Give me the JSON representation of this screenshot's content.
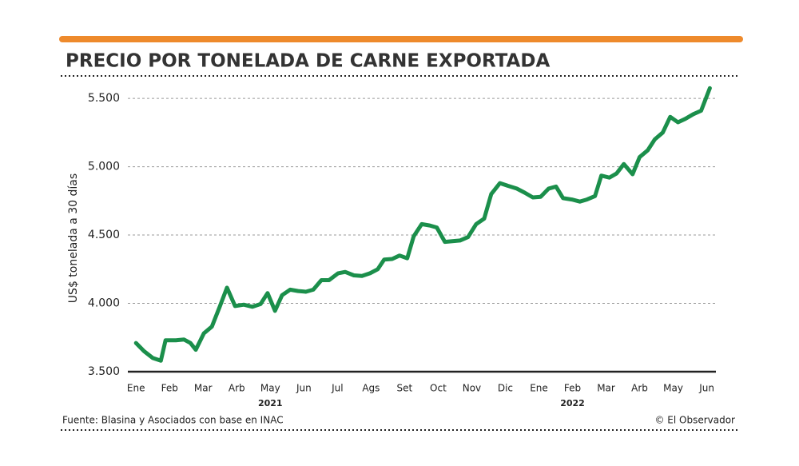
{
  "chart_data": {
    "type": "line",
    "title": "PRECIO POR TONELADA DE CARNE EXPORTADA",
    "y_label": "US$ tonelada a 30 días",
    "source": "Fuente: Blasina y Asociados con base en INAC",
    "credit": "© El Observador",
    "color": "#1b8f4b",
    "grid": true,
    "x": [
      0,
      0.24,
      0.5,
      0.74,
      0.88,
      1.19,
      1.43,
      1.62,
      1.78,
      2.02,
      2.26,
      2.5,
      2.71,
      2.95,
      3.21,
      3.47,
      3.71,
      3.92,
      4.14,
      4.35,
      4.59,
      4.83,
      5.06,
      5.28,
      5.52,
      5.75,
      6.02,
      6.23,
      6.49,
      6.73,
      6.97,
      7.2,
      7.39,
      7.63,
      7.85,
      8.08,
      8.27,
      8.51,
      8.75,
      8.96,
      9.2,
      9.42,
      9.65,
      9.89,
      10.13,
      10.37,
      10.58,
      10.84,
      11.08,
      11.34,
      11.58,
      11.82,
      12.05,
      12.29,
      12.51,
      12.72,
      12.98,
      13.22,
      13.43,
      13.67,
      13.86,
      14.1,
      14.31,
      14.53,
      14.79,
      15,
      15.24,
      15.45,
      15.69,
      15.91,
      16.14,
      16.36,
      16.6,
      16.83,
      17.09
    ],
    "values": [
      3710,
      3650,
      3600,
      3580,
      3730,
      3730,
      3735,
      3710,
      3660,
      3780,
      3830,
      3980,
      4115,
      3980,
      3990,
      3975,
      3995,
      4075,
      3945,
      4060,
      4100,
      4090,
      4085,
      4100,
      4170,
      4170,
      4220,
      4230,
      4205,
      4200,
      4220,
      4250,
      4320,
      4325,
      4350,
      4330,
      4490,
      4580,
      4570,
      4555,
      4450,
      4455,
      4460,
      4485,
      4580,
      4620,
      4800,
      4880,
      4860,
      4840,
      4810,
      4775,
      4780,
      4840,
      4855,
      4770,
      4760,
      4745,
      4760,
      4785,
      4935,
      4920,
      4950,
      5020,
      4945,
      5070,
      5120,
      5200,
      5250,
      5365,
      5325,
      5350,
      5385,
      5410,
      5575
    ],
    "xlim": [
      -0.1,
      17.2
    ],
    "xticks": [
      {
        "value": 0,
        "label": "Ene"
      },
      {
        "value": 1,
        "label": "Feb"
      },
      {
        "value": 2,
        "label": "Mar"
      },
      {
        "value": 3,
        "label": "Arb"
      },
      {
        "value": 4,
        "label": "May"
      },
      {
        "value": 5,
        "label": "Jun"
      },
      {
        "value": 6,
        "label": "Jul"
      },
      {
        "value": 7,
        "label": "Ags"
      },
      {
        "value": 8,
        "label": "Set"
      },
      {
        "value": 9,
        "label": "Oct"
      },
      {
        "value": 10,
        "label": "Nov"
      },
      {
        "value": 11,
        "label": "Dic"
      },
      {
        "value": 12,
        "label": "Ene"
      },
      {
        "value": 13,
        "label": "Feb"
      },
      {
        "value": 14,
        "label": "Mar"
      },
      {
        "value": 15,
        "label": "Arb"
      },
      {
        "value": 16,
        "label": "May"
      },
      {
        "value": 17,
        "label": "Jun"
      }
    ],
    "year_labels": [
      {
        "value": 4,
        "label": "2021"
      },
      {
        "value": 13,
        "label": "2022"
      }
    ],
    "ylim": [
      3500,
      5600
    ],
    "yticks": [
      {
        "value": 3500,
        "label": "3.500"
      },
      {
        "value": 4000,
        "label": "4.000"
      },
      {
        "value": 4500,
        "label": "4.500"
      },
      {
        "value": 5000,
        "label": "5.000"
      },
      {
        "value": 5500,
        "label": "5.500"
      }
    ]
  }
}
